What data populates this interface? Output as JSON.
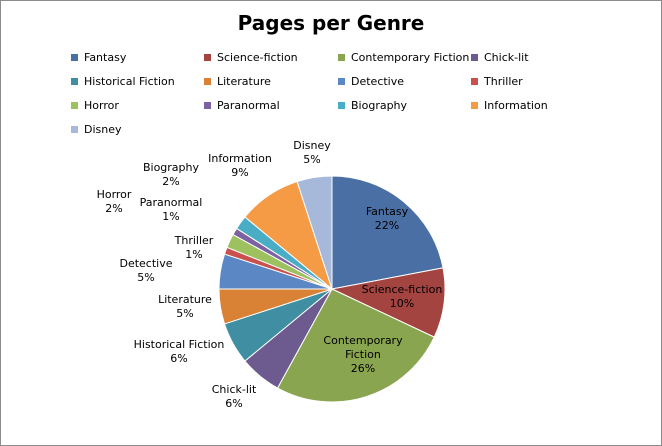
{
  "chart_data": {
    "type": "pie",
    "title": "Pages per Genre",
    "legend_position": "top",
    "slices": [
      {
        "name": "Fantasy",
        "value": 22,
        "label": "22%",
        "color": "#4A6FA5"
      },
      {
        "name": "Science-fiction",
        "value": 10,
        "label": "10%",
        "color": "#A44441"
      },
      {
        "name": "Contemporary Fiction",
        "value": 26,
        "label": "26%",
        "color": "#8AA550"
      },
      {
        "name": "Chick-lit",
        "value": 6,
        "label": "6%",
        "color": "#6D5A8E"
      },
      {
        "name": "Historical Fiction",
        "value": 6,
        "label": "6%",
        "color": "#3F8EA1"
      },
      {
        "name": "Literature",
        "value": 5,
        "label": "5%",
        "color": "#D98236"
      },
      {
        "name": "Detective",
        "value": 5,
        "label": "5%",
        "color": "#5B87C5"
      },
      {
        "name": "Thriller",
        "value": 1,
        "label": "1%",
        "color": "#C9504D"
      },
      {
        "name": "Horror",
        "value": 2,
        "label": "2%",
        "color": "#9CC15E"
      },
      {
        "name": "Paranormal",
        "value": 1,
        "label": "1%",
        "color": "#7D62A3"
      },
      {
        "name": "Biography",
        "value": 2,
        "label": "2%",
        "color": "#4AADC6"
      },
      {
        "name": "Information",
        "value": 9,
        "label": "9%",
        "color": "#F59B45"
      },
      {
        "name": "Disney",
        "value": 5,
        "label": "5%",
        "color": "#A7B9DB"
      }
    ]
  }
}
